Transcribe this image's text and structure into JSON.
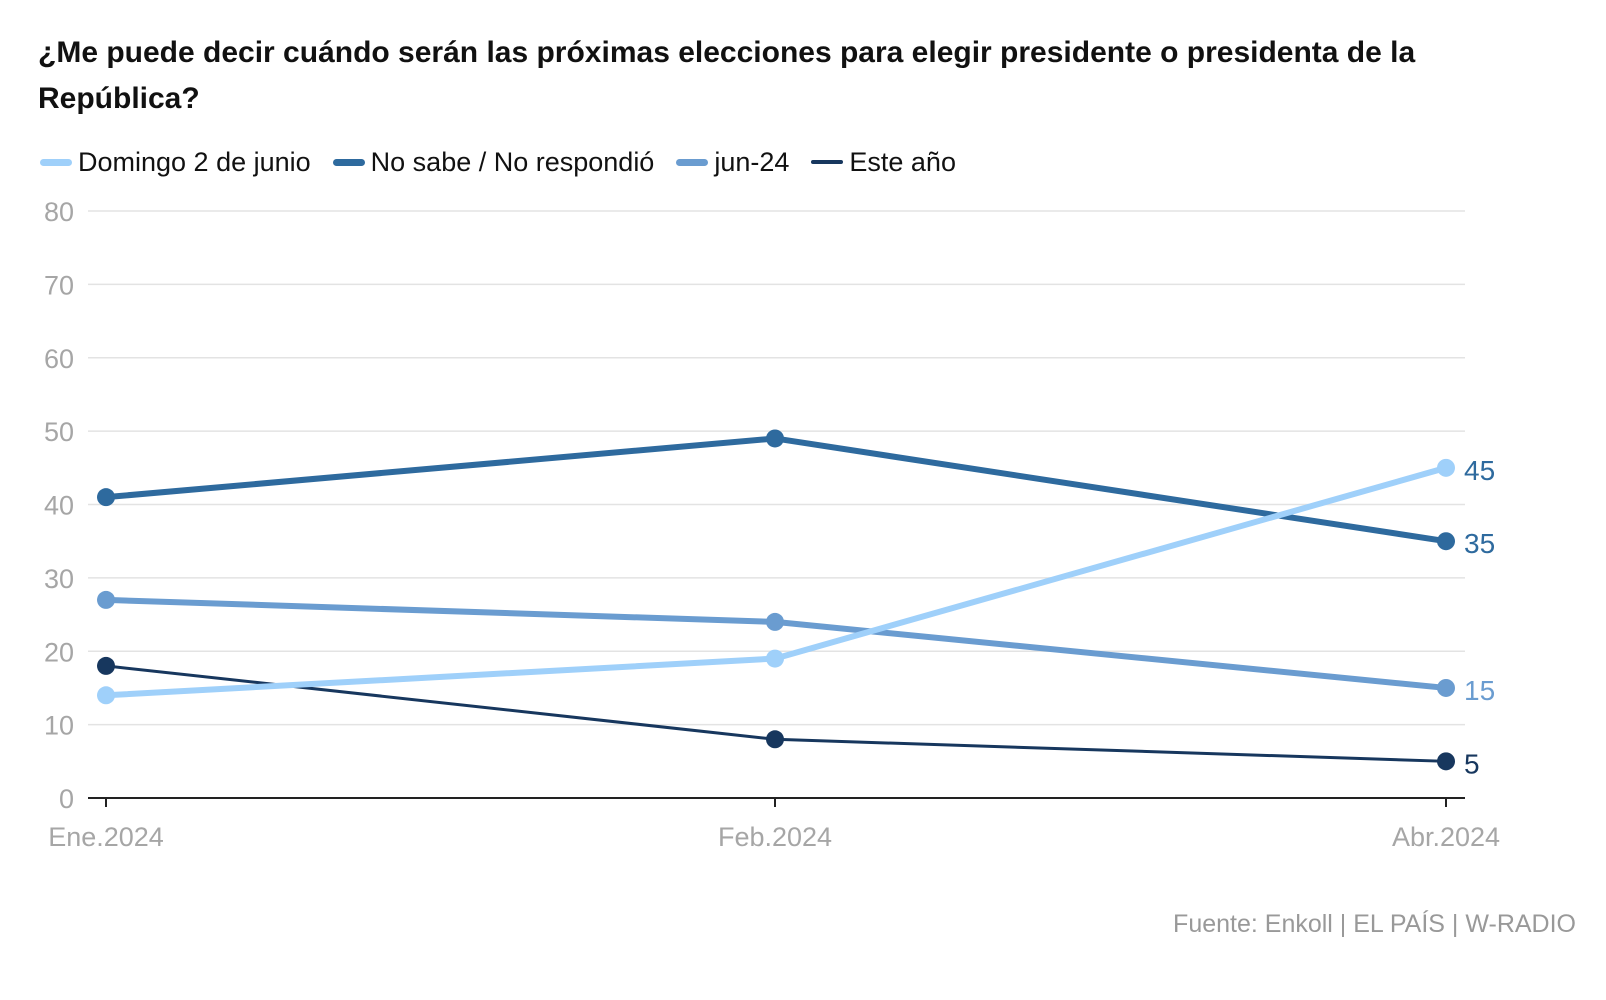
{
  "title": "¿Me puede decir cuándo serán las próximas elecciones para elegir presidente o presidenta de la República?",
  "source": "Fuente: Enkoll | EL PAÍS | W-RADIO",
  "chart_data": {
    "type": "line",
    "title": "¿Me puede decir cuándo serán las próximas elecciones para elegir presidente o presidenta de la República?",
    "categories": [
      "Ene.2024",
      "Feb.2024",
      "Abr.2024"
    ],
    "ylim": [
      0,
      80
    ],
    "yticks": [
      0,
      10,
      20,
      30,
      40,
      50,
      60,
      70,
      80
    ],
    "grid": true,
    "legend_position": "top-left",
    "series": [
      {
        "name": "Domingo 2 de junio",
        "values": [
          14,
          19,
          45
        ],
        "color": "#9fd0fa",
        "end_label": "45"
      },
      {
        "name": "No sabe / No respondió",
        "values": [
          41,
          49,
          35
        ],
        "color": "#2e6a9e",
        "end_label": "35"
      },
      {
        "name": "jun-24",
        "values": [
          27,
          24,
          15
        ],
        "color": "#6a9cd0",
        "end_label": "15"
      },
      {
        "name": "Este año",
        "values": [
          18,
          8,
          5
        ],
        "color": "#17375e",
        "end_label": "5"
      }
    ]
  }
}
